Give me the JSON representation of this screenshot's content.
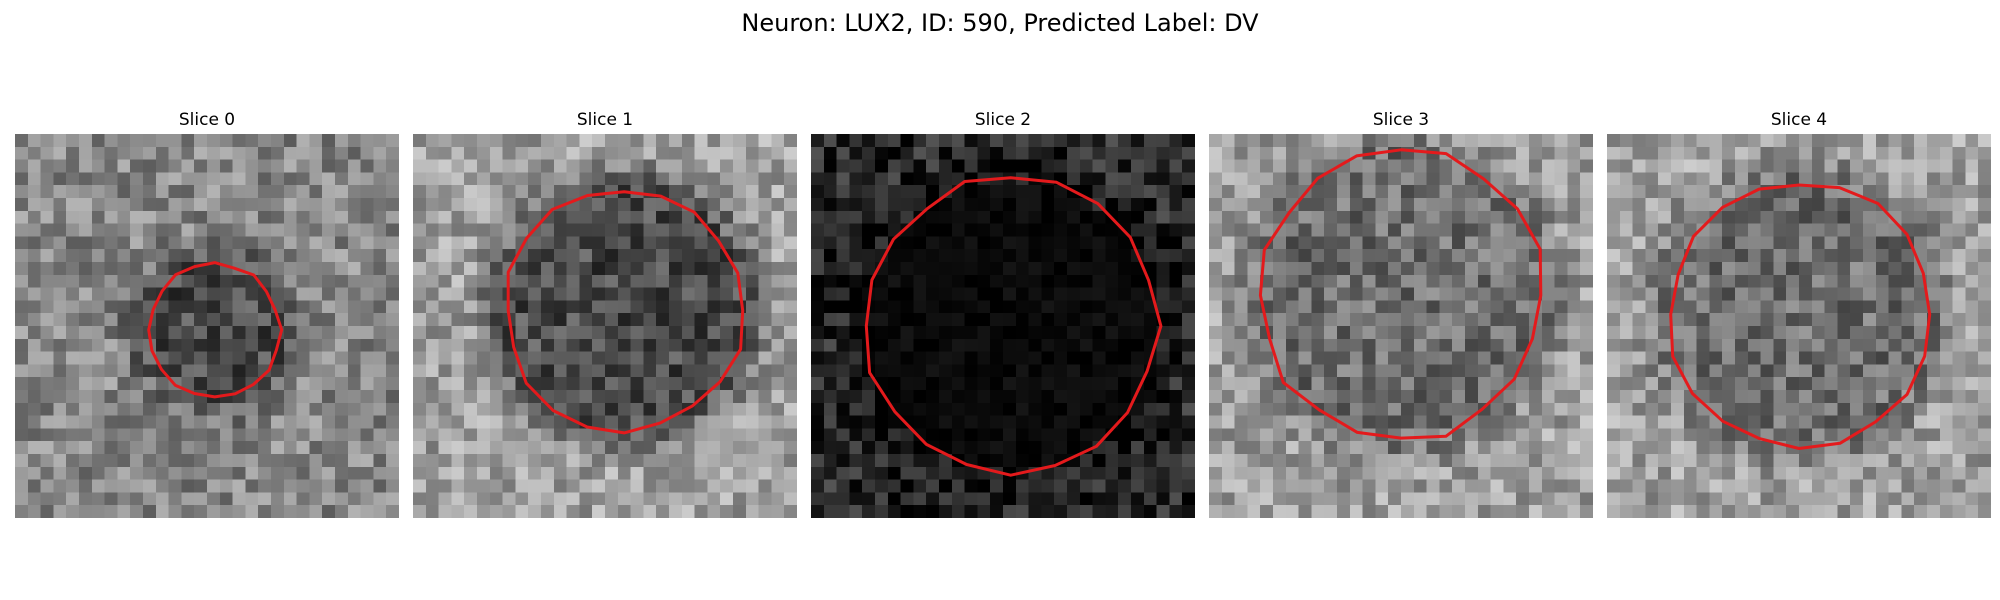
{
  "figure": {
    "title": "Neuron: LUX2, ID: 590, Predicted Label: DV",
    "contour_color": "#e41a1c"
  },
  "slices": [
    {
      "title": "Slice 0",
      "brightness": "medium",
      "cell_radius": 0.17,
      "cell_center": [
        0.52,
        0.51
      ],
      "cell_tone": "dark"
    },
    {
      "title": "Slice 1",
      "brightness": "bright",
      "cell_radius": 0.31,
      "cell_center": [
        0.55,
        0.46
      ],
      "cell_tone": "dark"
    },
    {
      "title": "Slice 2",
      "brightness": "dark",
      "cell_radius": 0.38,
      "cell_center": [
        0.52,
        0.5
      ],
      "cell_tone": "very-dark"
    },
    {
      "title": "Slice 3",
      "brightness": "bright",
      "cell_radius": 0.37,
      "cell_center": [
        0.5,
        0.42
      ],
      "cell_tone": "mid"
    },
    {
      "title": "Slice 4",
      "brightness": "bright",
      "cell_radius": 0.34,
      "cell_center": [
        0.5,
        0.47
      ],
      "cell_tone": "mid"
    }
  ]
}
